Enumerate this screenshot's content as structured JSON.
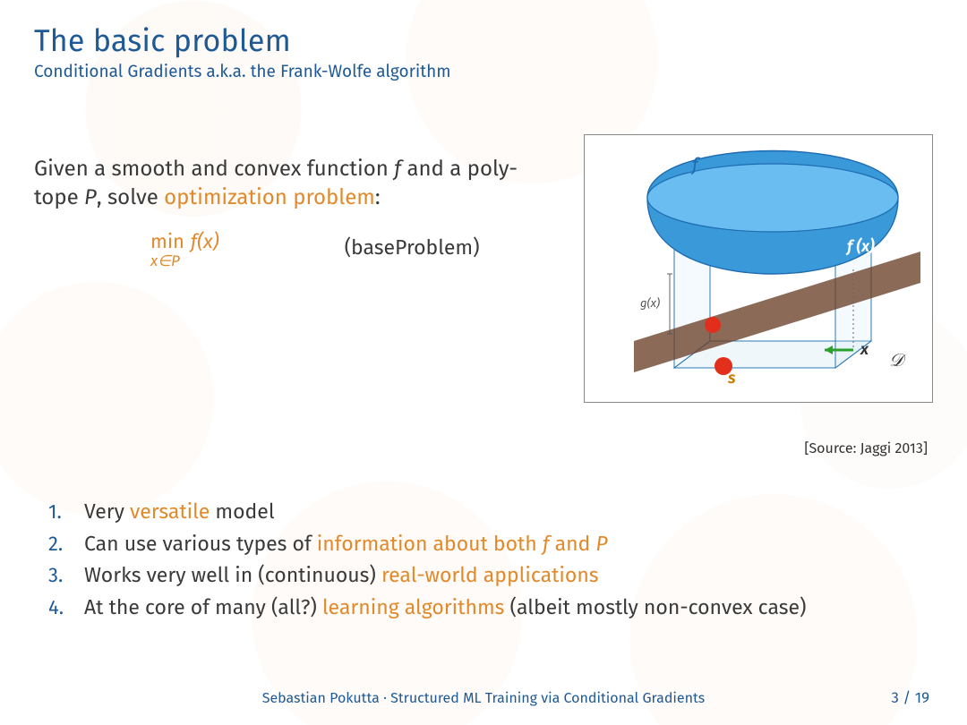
{
  "colors": {
    "title": "#1f5a96",
    "subtitle": "#1f5a96",
    "body": "#3a3a3a",
    "highlight": "#e28a2b",
    "list_number": "#1f5a96",
    "footer": "#1f5a96",
    "pagenum": "#1f5a96",
    "figure_border": "#888888"
  },
  "header": {
    "title": "The basic problem",
    "subtitle": "Conditional Gradients a.k.a. the Frank-Wolfe algorithm"
  },
  "intro": {
    "pre": "Given a smooth and convex function ",
    "f": "f",
    "mid1": " and a poly-",
    "line2a": "tope ",
    "P": "P",
    "line2b": ", solve ",
    "hl": "optimization problem",
    "line2c": ":"
  },
  "formula": {
    "min": "min",
    "fx": "f(x)",
    "constraint": "x∈P",
    "label": "(baseProblem)"
  },
  "figure": {
    "source": "[Source: Jaggi 2013]",
    "labels": {
      "f": "f",
      "fx": "f (x)",
      "gx": "g(x)",
      "s": "s",
      "x": "x",
      "D": "𝒟"
    },
    "colors": {
      "bowl": "#3a9ad9",
      "bowl_edge": "#1d6bb0",
      "plane": "#6a4028",
      "plane_opacity": 0.78,
      "box_fill": "#cfe7f4",
      "box_opacity": 0.32,
      "box_edge": "#2d78b4",
      "ball": "#e22f1c",
      "arrow": "#2ca02c",
      "frame_bg": "#ffffff"
    }
  },
  "points": [
    {
      "pre": "Very ",
      "hl": "versatile",
      "post": " model"
    },
    {
      "pre": "Can use various types of ",
      "hl": "information about both f and P",
      "post": ""
    },
    {
      "pre": "Works very well in (continuous) ",
      "hl": "real-world applications",
      "post": ""
    },
    {
      "pre": "At the core of many (all?) ",
      "hl": "learning algorithms",
      "post": " (albeit mostly non-convex case)"
    }
  ],
  "footer": {
    "text": "Sebastian Pokutta · Structured ML Training via Conditional Gradients",
    "page_current": "3",
    "page_sep": " / ",
    "page_total": "19"
  }
}
